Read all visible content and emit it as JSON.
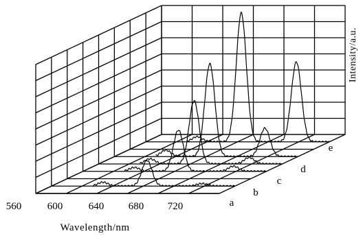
{
  "chart_data": {
    "type": "line",
    "projection": "3d-waterfall",
    "xlabel": "Wavelength/nm",
    "ylabel": "Intensity/a.u.",
    "x_ticks": [
      "560",
      "600",
      "640",
      "680",
      "720"
    ],
    "xlim": [
      560,
      760
    ],
    "grid": "on",
    "series": [
      {
        "name": "a",
        "peaks": [
          {
            "x": 616,
            "height": 0.03
          },
          {
            "x": 664,
            "height": 0.2
          },
          {
            "x": 724,
            "height": 0.02
          }
        ]
      },
      {
        "name": "b",
        "peaks": [
          {
            "x": 616,
            "height": 0.03
          },
          {
            "x": 664,
            "height": 0.32
          },
          {
            "x": 724,
            "height": 0.04
          }
        ]
      },
      {
        "name": "c",
        "peaks": [
          {
            "x": 616,
            "height": 0.04
          },
          {
            "x": 664,
            "height": 0.49
          },
          {
            "x": 724,
            "height": 0.05
          }
        ]
      },
      {
        "name": "d",
        "peaks": [
          {
            "x": 616,
            "height": 0.05
          },
          {
            "x": 664,
            "height": 0.72
          },
          {
            "x": 724,
            "height": 0.22
          }
        ]
      },
      {
        "name": "e",
        "peaks": [
          {
            "x": 616,
            "height": 0.04
          },
          {
            "x": 664,
            "height": 1.0
          },
          {
            "x": 724,
            "height": 0.62
          }
        ]
      }
    ]
  }
}
